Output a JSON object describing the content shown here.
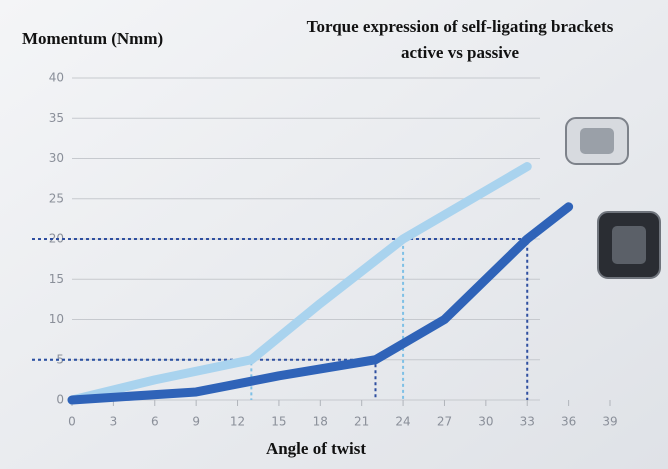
{
  "chart_data": {
    "type": "line",
    "title": "Torque expression of self-ligating brackets",
    "subtitle": "active vs passive",
    "y_label": "Momentum (Nmm)",
    "x_label": "Angle of twist",
    "xlim": [
      0,
      39
    ],
    "xticks": [
      0,
      3,
      6,
      9,
      12,
      15,
      18,
      21,
      24,
      27,
      30,
      33,
      36,
      39
    ],
    "ylim": [
      0,
      40
    ],
    "yticks": [
      0,
      5,
      10,
      15,
      20,
      25,
      30,
      35,
      40
    ],
    "grid": true,
    "series": [
      {
        "color": "#a9d3ee",
        "x": [
          0,
          6,
          13,
          18,
          24,
          33
        ],
        "values": [
          0,
          2.5,
          5,
          12,
          20,
          29
        ]
      },
      {
        "color": "#2f63b8",
        "x": [
          0,
          9,
          15,
          22,
          27,
          33,
          36
        ],
        "values": [
          0,
          1,
          3,
          5,
          10,
          20,
          24
        ]
      }
    ],
    "guides": [
      {
        "x": 13,
        "y": 5
      },
      {
        "x": 22,
        "y": 5
      },
      {
        "x": 24,
        "y": 20
      },
      {
        "x": 33,
        "y": 20
      }
    ]
  }
}
